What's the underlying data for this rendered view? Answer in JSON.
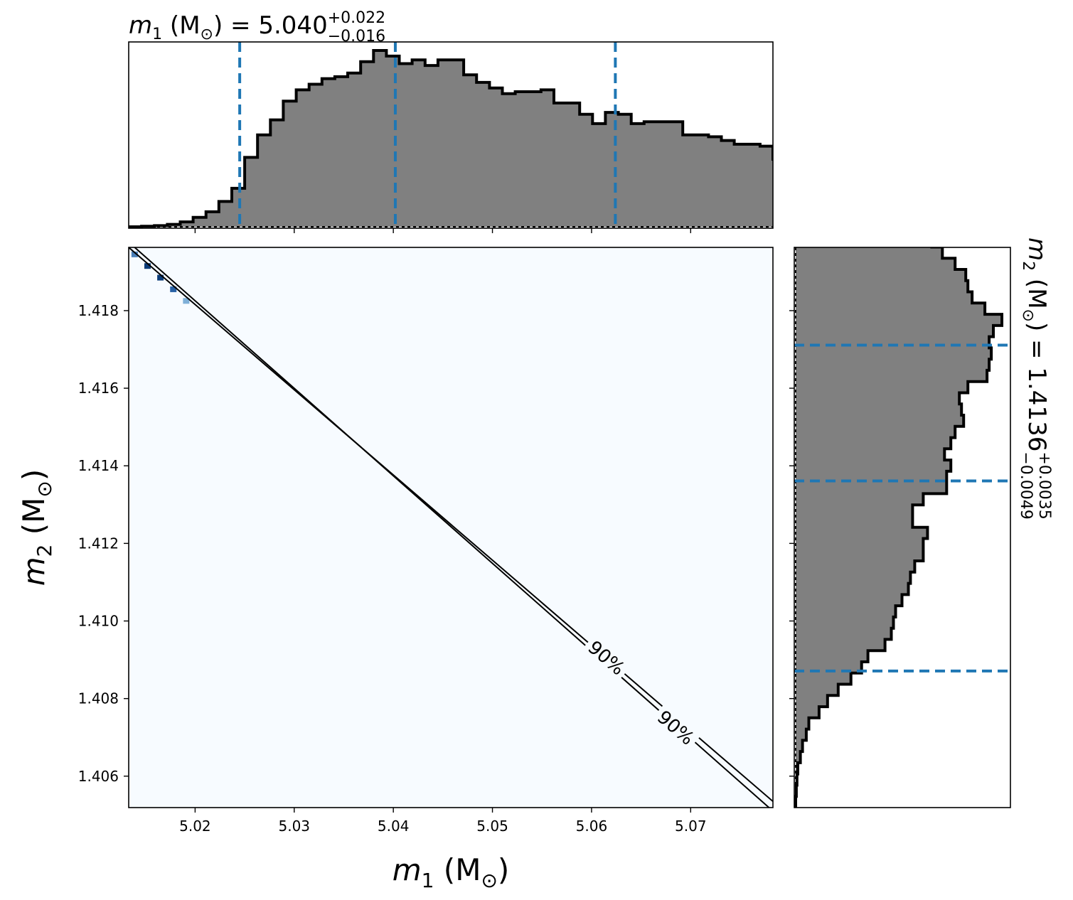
{
  "chart_data": [
    {
      "type": "histogram",
      "panel": "top-marginal",
      "title_var": "m",
      "title_sub": "1",
      "title_unit": "M",
      "title_value": "5.040",
      "title_plus": "+0.022",
      "title_minus": "−0.016",
      "xlim": [
        5.0133,
        5.0783
      ],
      "x_ticks": [
        5.02,
        5.03,
        5.04,
        5.05,
        5.06,
        5.07
      ],
      "bin_edges_start": 5.0133,
      "bin_width": 0.0013,
      "heights": [
        0.0,
        0.003,
        0.006,
        0.013,
        0.026,
        0.05,
        0.08,
        0.135,
        0.205,
        0.37,
        0.49,
        0.57,
        0.67,
        0.73,
        0.76,
        0.79,
        0.8,
        0.82,
        0.88,
        0.94,
        0.91,
        0.87,
        0.89,
        0.86,
        0.89,
        0.89,
        0.81,
        0.77,
        0.74,
        0.71,
        0.72,
        0.72,
        0.73,
        0.66,
        0.66,
        0.6,
        0.55,
        0.61,
        0.6,
        0.55,
        0.56,
        0.56,
        0.56,
        0.49,
        0.49,
        0.48,
        0.46,
        0.44,
        0.44,
        0.43,
        0.36,
        0.29,
        0.26,
        0.18,
        0.13,
        0.1,
        0.07,
        0.044,
        0.026,
        0.018,
        0.01,
        0.004,
        0.002,
        0.0,
        0.0
      ],
      "quantile_lines": [
        5.0245,
        5.0402,
        5.0624
      ],
      "quantile_color": "#1f77b4",
      "fill_color": "#808080"
    },
    {
      "type": "contour",
      "panel": "joint",
      "xlabel_var": "m",
      "xlabel_sub": "1",
      "xlabel_unit": "M",
      "ylabel_var": "m",
      "ylabel_sub": "2",
      "ylabel_unit": "M",
      "xlim": [
        5.0133,
        5.0783
      ],
      "ylim": [
        1.40519,
        1.41963
      ],
      "x_ticks": [
        5.02,
        5.03,
        5.04,
        5.05,
        5.06,
        5.07
      ],
      "y_ticks": [
        1.406,
        1.408,
        1.41,
        1.412,
        1.414,
        1.416,
        1.418
      ],
      "contour_lines": [
        {
          "x": [
            5.0133,
            5.0783
          ],
          "y": [
            1.41963,
            1.40535
          ]
        },
        {
          "x": [
            5.0139,
            5.0783
          ],
          "y": [
            1.41963,
            1.4051
          ]
        }
      ],
      "contour_label": "90%",
      "contour_label_positions": [
        {
          "x": 5.0615,
          "y": 1.40905
        },
        {
          "x": 5.0685,
          "y": 1.40725
        }
      ],
      "dense_cells": [
        {
          "x": 5.0139,
          "y": 1.41945,
          "c": "#4a7fb7"
        },
        {
          "x": 5.0152,
          "y": 1.41915,
          "c": "#0b3b78"
        },
        {
          "x": 5.0165,
          "y": 1.41885,
          "c": "#0b3b78"
        },
        {
          "x": 5.0178,
          "y": 1.41855,
          "c": "#2a62a5"
        },
        {
          "x": 5.0191,
          "y": 1.41825,
          "c": "#7fb0d8"
        }
      ],
      "background_color": "#f7fbff",
      "line_color": "#000000"
    },
    {
      "type": "histogram",
      "panel": "right-marginal",
      "orientation": "horizontal",
      "title_var": "m",
      "title_sub": "2",
      "title_unit": "M",
      "title_value": "1.4136",
      "title_plus": "+0.0035",
      "title_minus": "−0.0049",
      "ylim": [
        1.40519,
        1.41963
      ],
      "y_ticks": [
        1.406,
        1.408,
        1.41,
        1.412,
        1.414,
        1.416,
        1.418
      ],
      "bin_edges_start": 1.40519,
      "bin_width": 0.000289,
      "heights": [
        0.0,
        0.003,
        0.006,
        0.01,
        0.022,
        0.032,
        0.05,
        0.062,
        0.11,
        0.15,
        0.2,
        0.26,
        0.31,
        0.34,
        0.42,
        0.45,
        0.46,
        0.47,
        0.5,
        0.53,
        0.54,
        0.56,
        0.6,
        0.6,
        0.62,
        0.55,
        0.55,
        0.6,
        0.71,
        0.71,
        0.73,
        0.7,
        0.73,
        0.75,
        0.79,
        0.78,
        0.77,
        0.81,
        0.9,
        0.91,
        0.92,
        0.91,
        0.93,
        0.97,
        0.89,
        0.83,
        0.81,
        0.8,
        0.75,
        0.69,
        0.64,
        0.52,
        0.52,
        0.3,
        0.2,
        0.08,
        0.05,
        0.03,
        0.012,
        0.006,
        0.0,
        0.0,
        0.0,
        0.0,
        0.0
      ],
      "quantile_lines": [
        1.40871,
        1.41361,
        1.41711
      ],
      "quantile_color": "#1f77b4",
      "fill_color": "#808080"
    }
  ],
  "labels": {
    "unit_sun": "⊙",
    "percent_sign": "%"
  }
}
